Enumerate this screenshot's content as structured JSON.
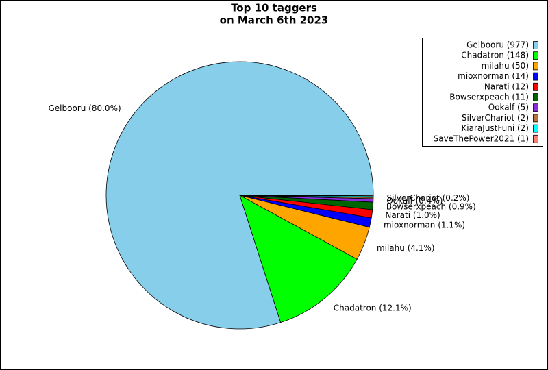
{
  "chart_data": {
    "type": "pie",
    "title": [
      "Top 10 taggers",
      "on March 6th 2023"
    ],
    "categories": [
      "Gelbooru (977)",
      "Chadatron (148)",
      "milahu (50)",
      "mioxnorman (14)",
      "Narati (12)",
      "Bowserxpeach (11)",
      "Ookalf (5)",
      "SilverChariot (2)",
      "KiaraJustFuni (2)",
      "SaveThePower2021 (1)"
    ],
    "values": [
      977,
      148,
      50,
      14,
      12,
      11,
      5,
      2,
      2,
      1
    ],
    "value_labels": [
      "Gelbooru (80.0%)",
      "Chadatron (12.1%)",
      "milahu (4.1%)",
      "mioxnorman (1.1%)",
      "Narati (1.0%)",
      "Bowserxpeach (0.9%)",
      "Ookalf (0.4%)",
      "SilverChariot (0.2%)",
      null,
      null
    ],
    "colors": [
      "#87ceeb",
      "#00ff00",
      "#ffa500",
      "#0000ff",
      "#ff0000",
      "#006400",
      "#8a2be2",
      "#b8733c",
      "#00ffff",
      "#fa8072"
    ],
    "legend": "upper right"
  }
}
